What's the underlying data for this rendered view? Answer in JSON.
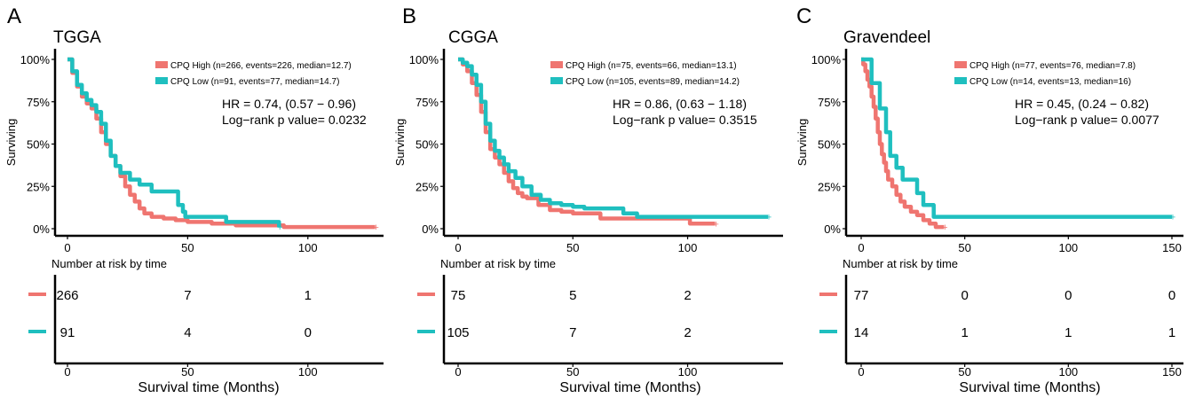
{
  "figure": {
    "section_label": "Number at risk by time",
    "xlabel": "Survival time (Months)",
    "ylabel": "Surviving",
    "colors": {
      "high": "#ef7570",
      "low": "#1fbfbf"
    }
  },
  "chart_data": [
    {
      "type": "line",
      "panel_letter": "A",
      "title": "TGGA",
      "xlim": [
        0,
        130
      ],
      "ylim": [
        0,
        100
      ],
      "xticks": [
        0,
        50,
        100
      ],
      "yticks": [
        "0%",
        "25%",
        "50%",
        "75%",
        "100%"
      ],
      "series": [
        {
          "name": "CPQ High (n=266, events=226, median=12.7)",
          "group": "high",
          "points": [
            [
              0,
              100
            ],
            [
              2,
              92
            ],
            [
              4,
              84
            ],
            [
              6,
              78
            ],
            [
              8,
              74
            ],
            [
              10,
              71
            ],
            [
              12,
              65
            ],
            [
              14,
              57
            ],
            [
              16,
              50
            ],
            [
              18,
              43
            ],
            [
              20,
              37
            ],
            [
              22,
              31
            ],
            [
              24,
              25
            ],
            [
              26,
              20
            ],
            [
              28,
              16
            ],
            [
              30,
              12
            ],
            [
              32,
              9
            ],
            [
              35,
              7
            ],
            [
              40,
              6
            ],
            [
              45,
              5
            ],
            [
              50,
              4
            ],
            [
              60,
              3
            ],
            [
              70,
              2
            ],
            [
              80,
              2
            ],
            [
              90,
              1
            ],
            [
              100,
              1
            ],
            [
              110,
              1
            ],
            [
              128,
              1
            ]
          ]
        },
        {
          "name": "CPQ Low (n=91, events=77, median=14.7)",
          "group": "low",
          "points": [
            [
              0,
              100
            ],
            [
              2,
              93
            ],
            [
              4,
              85
            ],
            [
              6,
              80
            ],
            [
              8,
              76
            ],
            [
              10,
              73
            ],
            [
              12,
              69
            ],
            [
              14,
              62
            ],
            [
              16,
              52
            ],
            [
              18,
              43
            ],
            [
              20,
              37
            ],
            [
              22,
              33
            ],
            [
              26,
              29
            ],
            [
              30,
              26
            ],
            [
              35,
              22
            ],
            [
              44,
              22
            ],
            [
              46,
              14
            ],
            [
              48,
              10
            ],
            [
              49,
              7
            ],
            [
              65,
              7
            ],
            [
              66,
              4
            ],
            [
              80,
              4
            ],
            [
              87,
              4
            ],
            [
              88,
              1
            ]
          ]
        }
      ],
      "hr_text": "HR = 0.74, (0.57 − 0.96)",
      "p_text": "Log−rank p value= 0.0232",
      "risk_table": {
        "times": [
          0,
          50,
          100
        ],
        "high": [
          "266",
          "7",
          "1"
        ],
        "low": [
          "91",
          "4",
          "0"
        ]
      }
    },
    {
      "type": "line",
      "panel_letter": "B",
      "title": "CGGA",
      "xlim": [
        0,
        135
      ],
      "ylim": [
        0,
        100
      ],
      "xticks": [
        0,
        50,
        100
      ],
      "yticks": [
        "0%",
        "25%",
        "50%",
        "75%",
        "100%"
      ],
      "series": [
        {
          "name": "CPQ High (n=75, events=66, median=13.1)",
          "group": "high",
          "points": [
            [
              0,
              100
            ],
            [
              2,
              97
            ],
            [
              4,
              93
            ],
            [
              6,
              86
            ],
            [
              8,
              79
            ],
            [
              10,
              69
            ],
            [
              12,
              57
            ],
            [
              14,
              47
            ],
            [
              16,
              42
            ],
            [
              18,
              38
            ],
            [
              20,
              33
            ],
            [
              22,
              28
            ],
            [
              24,
              24
            ],
            [
              26,
              21
            ],
            [
              28,
              19
            ],
            [
              30,
              18
            ],
            [
              35,
              14
            ],
            [
              40,
              11
            ],
            [
              45,
              10
            ],
            [
              50,
              9
            ],
            [
              60,
              9
            ],
            [
              62,
              6
            ],
            [
              80,
              6
            ],
            [
              100,
              6
            ],
            [
              101,
              3
            ],
            [
              112,
              3
            ]
          ]
        },
        {
          "name": "CPQ Low (n=105, events=89, median=14.2)",
          "group": "low",
          "points": [
            [
              0,
              100
            ],
            [
              2,
              98
            ],
            [
              4,
              96
            ],
            [
              6,
              91
            ],
            [
              8,
              85
            ],
            [
              10,
              75
            ],
            [
              12,
              62
            ],
            [
              14,
              52
            ],
            [
              16,
              46
            ],
            [
              18,
              42
            ],
            [
              20,
              38
            ],
            [
              22,
              34
            ],
            [
              25,
              30
            ],
            [
              28,
              25
            ],
            [
              32,
              20
            ],
            [
              36,
              17
            ],
            [
              40,
              15
            ],
            [
              45,
              14
            ],
            [
              50,
              13
            ],
            [
              55,
              12
            ],
            [
              60,
              12
            ],
            [
              70,
              12
            ],
            [
              72,
              9
            ],
            [
              77,
              9
            ],
            [
              78,
              7
            ],
            [
              135,
              7
            ]
          ]
        }
      ],
      "hr_text": "HR = 0.86, (0.63 − 1.18)",
      "p_text": "Log−rank p value= 0.3515",
      "risk_table": {
        "times": [
          0,
          50,
          100
        ],
        "high": [
          "75",
          "5",
          "2"
        ],
        "low": [
          "105",
          "7",
          "2"
        ]
      }
    },
    {
      "type": "line",
      "panel_letter": "C",
      "title": "Gravendeel",
      "xlim": [
        0,
        150
      ],
      "ylim": [
        0,
        100
      ],
      "xticks": [
        0,
        50,
        100,
        150
      ],
      "yticks": [
        "0%",
        "25%",
        "50%",
        "75%",
        "100%"
      ],
      "series": [
        {
          "name": "CPQ High (n=77, events=76, median=7.8)",
          "group": "high",
          "points": [
            [
              0,
              100
            ],
            [
              1,
              97
            ],
            [
              2,
              93
            ],
            [
              3,
              88
            ],
            [
              4,
              84
            ],
            [
              5,
              78
            ],
            [
              6,
              72
            ],
            [
              7,
              65
            ],
            [
              8,
              57
            ],
            [
              9,
              50
            ],
            [
              10,
              44
            ],
            [
              11,
              39
            ],
            [
              12,
              34
            ],
            [
              13,
              29
            ],
            [
              15,
              25
            ],
            [
              17,
              20
            ],
            [
              19,
              16
            ],
            [
              21,
              13
            ],
            [
              24,
              10
            ],
            [
              27,
              8
            ],
            [
              30,
              5
            ],
            [
              33,
              3
            ],
            [
              36,
              1
            ],
            [
              40,
              1
            ]
          ]
        },
        {
          "name": "CPQ Low (n=14, events=13, median=16)",
          "group": "low",
          "points": [
            [
              0,
              100
            ],
            [
              5,
              100
            ],
            [
              5,
              86
            ],
            [
              9,
              86
            ],
            [
              9,
              71
            ],
            [
              12,
              71
            ],
            [
              12,
              57
            ],
            [
              14,
              57
            ],
            [
              14,
              43
            ],
            [
              17,
              43
            ],
            [
              17,
              36
            ],
            [
              20,
              36
            ],
            [
              20,
              29
            ],
            [
              27,
              29
            ],
            [
              27,
              21
            ],
            [
              30,
              21
            ],
            [
              30,
              14
            ],
            [
              35,
              14
            ],
            [
              35,
              7
            ],
            [
              150,
              7
            ]
          ]
        }
      ],
      "hr_text": "HR = 0.45, (0.24 − 0.82)",
      "p_text": "Log−rank p value= 0.0077",
      "risk_table": {
        "times": [
          0,
          50,
          100,
          150
        ],
        "high": [
          "77",
          "0",
          "0",
          "0"
        ],
        "low": [
          "14",
          "1",
          "1",
          "1"
        ]
      }
    }
  ]
}
